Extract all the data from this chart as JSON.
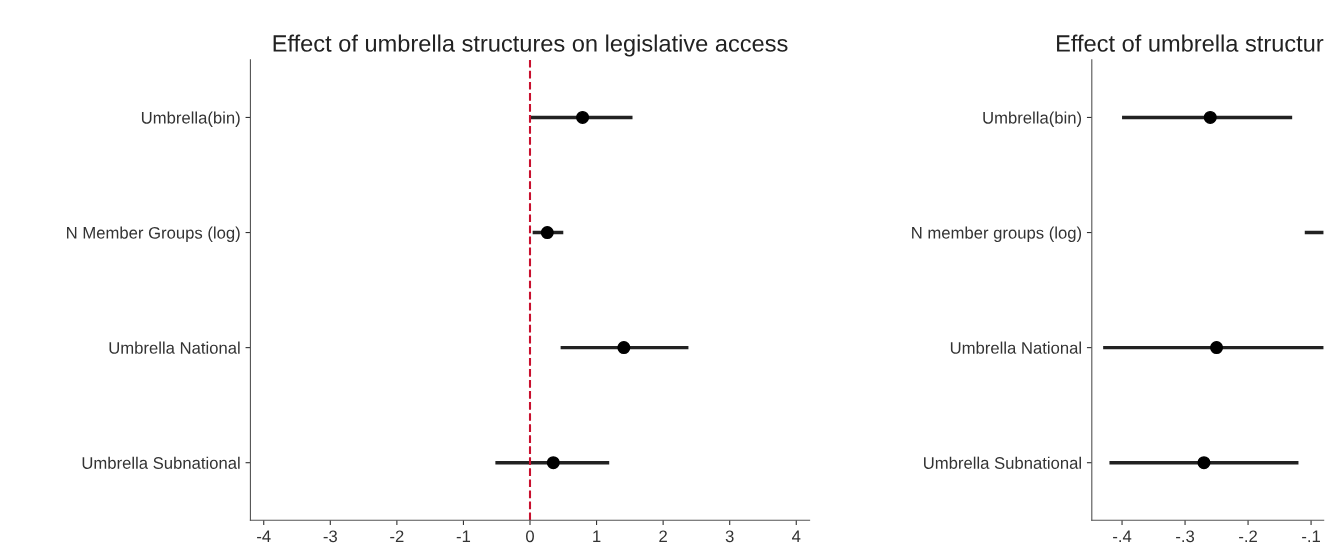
{
  "chart_data": [
    {
      "type": "scatter",
      "title": "Effect of umbrella structures on legislative access",
      "orientation": "horizontal",
      "categories": [
        "Umbrella(bin)",
        "N Member Groups (log)",
        "Umbrella National",
        "Umbrella Subnational"
      ],
      "series": [
        {
          "type": "bar",
          "color": "#222222",
          "base": [
            0.01,
            0.04,
            0.46,
            -0.52
          ],
          "values": [
            1.53,
            0.46,
            1.92,
            1.71
          ]
        },
        {
          "color": "#000000",
          "values": [
            0.79,
            0.26,
            1.41,
            0.35
          ]
        }
      ],
      "xlim": [
        -4.2,
        4.2
      ],
      "xticks": [
        -4,
        -3,
        -2,
        -1,
        0,
        1,
        2,
        3,
        4
      ],
      "ref_lines": [
        {
          "axis": "x",
          "value": 0,
          "color": "#c8102e",
          "line_style": "dashed"
        }
      ],
      "marker": "circle",
      "grid": false,
      "legend": false
    },
    {
      "type": "scatter",
      "title": "Effect of umbrella structur",
      "orientation": "horizontal",
      "categories": [
        "Umbrella(bin)",
        "N member groups (log)",
        "Umbrella National",
        "Umbrella Subnational"
      ],
      "series": [
        {
          "type": "bar",
          "color": "#222222",
          "base": [
            -0.4,
            -0.11,
            -0.43,
            -0.42
          ],
          "values": [
            0.27,
            0.03,
            0.35,
            0.3
          ]
        },
        {
          "color": "#000000",
          "values": [
            -0.26,
            null,
            -0.25,
            -0.27
          ]
        }
      ],
      "xlim": [
        -0.448,
        -0.08
      ],
      "xticks": [
        {
          "value": -0.4,
          "label": "-.4"
        },
        {
          "value": -0.3,
          "label": "-.3"
        },
        {
          "value": -0.2,
          "label": "-.2"
        },
        {
          "value": -0.1,
          "label": "-.1"
        }
      ],
      "marker": "circle",
      "grid": false,
      "legend": false
    }
  ]
}
